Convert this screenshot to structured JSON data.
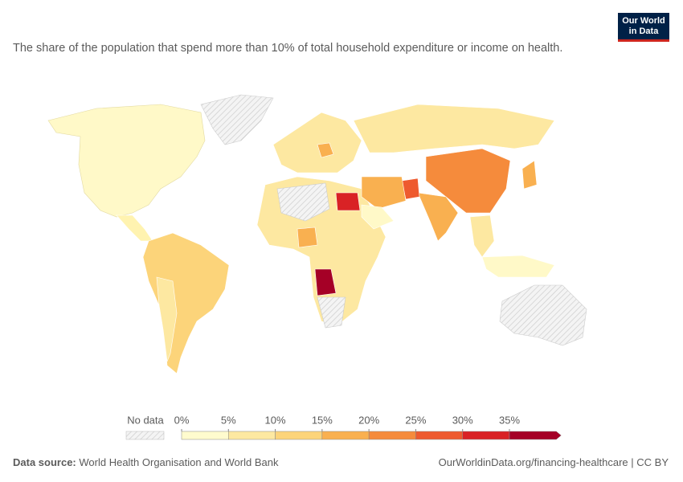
{
  "logo": {
    "line1": "Our World",
    "line2": "in Data"
  },
  "subtitle": "The share of the population that spend more than 10% of total household expenditure or income on health.",
  "legend": {
    "no_data": "No data",
    "ticks": [
      {
        "value": 0,
        "label": "0%"
      },
      {
        "value": 5,
        "label": "5%"
      },
      {
        "value": 10,
        "label": "10%"
      },
      {
        "value": 15,
        "label": "15%"
      },
      {
        "value": 20,
        "label": "20%"
      },
      {
        "value": 25,
        "label": "25%"
      },
      {
        "value": 30,
        "label": "30%"
      },
      {
        "value": 35,
        "label": "35%"
      }
    ],
    "colors": [
      "#fffbce",
      "#fde8a1",
      "#fcd47a",
      "#f9b050",
      "#f58b3c",
      "#ee5a2f",
      "#d92225",
      "#a50026"
    ]
  },
  "footer": {
    "source_label": "Data source:",
    "source": "World Health Organisation and World Bank",
    "credit": "OurWorldinData.org/financing-healthcare | CC BY"
  }
}
